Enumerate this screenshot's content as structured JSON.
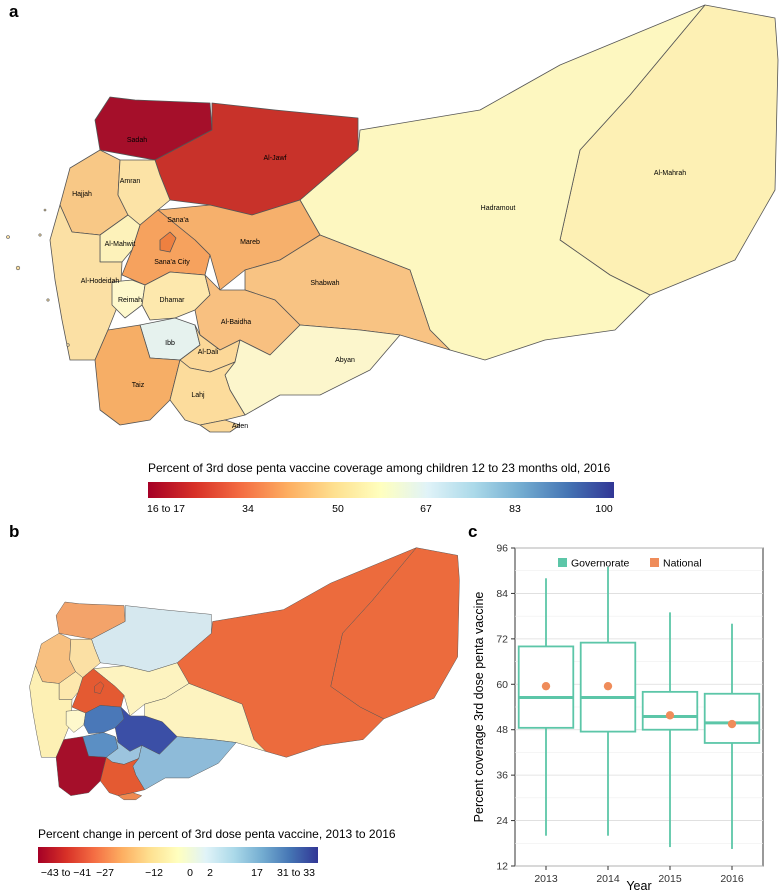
{
  "panels": {
    "a": "a",
    "b": "b",
    "c": "c"
  },
  "panel_a": {
    "regions": [
      {
        "name": "Sadah",
        "fill": "#a50f2a"
      },
      {
        "name": "Al-Jawf",
        "fill": "#c8322a"
      },
      {
        "name": "Hadramout",
        "fill": "#fdf7c0"
      },
      {
        "name": "Al-Mahrah",
        "fill": "#fdf0b4"
      },
      {
        "name": "Hajjah",
        "fill": "#f8c886"
      },
      {
        "name": "Amran",
        "fill": "#fce3a6"
      },
      {
        "name": "Sana'a",
        "fill": "#f6a25e"
      },
      {
        "name": "Al-Mahwit",
        "fill": "#fdf2ba"
      },
      {
        "name": "Sana'a City",
        "fill": "#ee8040"
      },
      {
        "name": "Mareb",
        "fill": "#f6b06c"
      },
      {
        "name": "Shabwah",
        "fill": "#f8c383"
      },
      {
        "name": "Al-Hodeidah",
        "fill": "#fbe0a4"
      },
      {
        "name": "Reimah",
        "fill": "#fef8cc"
      },
      {
        "name": "Dhamar",
        "fill": "#fde8ad"
      },
      {
        "name": "Al-Baidha",
        "fill": "#f8c080"
      },
      {
        "name": "Ibb",
        "fill": "#e6f2ee"
      },
      {
        "name": "Al-Dali",
        "fill": "#fcd898"
      },
      {
        "name": "Abyan",
        "fill": "#fcf6cc"
      },
      {
        "name": "Taiz",
        "fill": "#f6ae66"
      },
      {
        "name": "Lahj",
        "fill": "#fcdc9c"
      },
      {
        "name": "Aden",
        "fill": "#fbd898"
      }
    ],
    "legend": {
      "title": "Percent of 3rd dose penta vaccine coverage among children 12 to 23 months old, 2016",
      "ticks": [
        "16 to 17",
        "34",
        "50",
        "67",
        "83",
        "100"
      ]
    }
  },
  "panel_b": {
    "regions": [
      {
        "name": "Sadah",
        "fill": "#f3a36a"
      },
      {
        "name": "Al-Jawf",
        "fill": "#d6e8ef"
      },
      {
        "name": "Hadramout",
        "fill": "#ec6b3d"
      },
      {
        "name": "Al-Mahrah",
        "fill": "#ec6b3d"
      },
      {
        "name": "Hajjah",
        "fill": "#f8c080"
      },
      {
        "name": "Amran",
        "fill": "#fbe0a4"
      },
      {
        "name": "Sana'a",
        "fill": "#e45a32"
      },
      {
        "name": "Al-Mahwit",
        "fill": "#fde8ad"
      },
      {
        "name": "Sana'a City",
        "fill": "#e45a32"
      },
      {
        "name": "Mareb",
        "fill": "#fdf3c0"
      },
      {
        "name": "Shabwah",
        "fill": "#fdf3c0"
      },
      {
        "name": "Al-Hodeidah",
        "fill": "#fdf0b4"
      },
      {
        "name": "Reimah",
        "fill": "#fef8cc"
      },
      {
        "name": "Dhamar",
        "fill": "#4a78b8"
      },
      {
        "name": "Al-Baidha",
        "fill": "#3b4fa6"
      },
      {
        "name": "Ibb",
        "fill": "#5b8fc4"
      },
      {
        "name": "Al-Dali",
        "fill": "#9cc4de"
      },
      {
        "name": "Abyan",
        "fill": "#8ebbd9"
      },
      {
        "name": "Taiz",
        "fill": "#a50f2a"
      },
      {
        "name": "Lahj",
        "fill": "#e45a32"
      },
      {
        "name": "Aden",
        "fill": "#ef8a50"
      }
    ],
    "legend": {
      "title": "Percent change in percent of 3rd dose penta vaccine, 2013 to 2016",
      "ticks": [
        "−43 to −41",
        "−27",
        "−12",
        "0",
        "2",
        "17",
        "31 to 33"
      ]
    }
  },
  "chart_data": {
    "type": "box",
    "title": "",
    "xlabel": "Year",
    "ylabel": "Percent coverage 3rd dose penta vaccine",
    "ylim": [
      12,
      96
    ],
    "yticks": [
      12,
      24,
      36,
      48,
      60,
      72,
      84,
      96
    ],
    "categories": [
      "2013",
      "2014",
      "2015",
      "2016"
    ],
    "legend": [
      {
        "name": "Governorate",
        "label": "Governorate",
        "color": "#5cc6a8"
      },
      {
        "name": "National",
        "label": "National",
        "color": "#ef8c5a"
      }
    ],
    "series": [
      {
        "name": "Governorate",
        "type": "boxplot",
        "boxes": [
          {
            "year": "2013",
            "min": 20,
            "q1": 48.5,
            "median": 56.5,
            "q3": 70,
            "max": 88
          },
          {
            "year": "2014",
            "min": 20,
            "q1": 47.5,
            "median": 56.5,
            "q3": 71,
            "max": 91
          },
          {
            "year": "2015",
            "min": 17,
            "q1": 48,
            "median": 51.5,
            "q3": 58,
            "max": 79
          },
          {
            "year": "2016",
            "min": 16.5,
            "q1": 44.5,
            "median": 49.8,
            "q3": 57.5,
            "max": 76
          }
        ]
      },
      {
        "name": "National",
        "type": "point",
        "values": [
          59.5,
          59.5,
          51.8,
          49.5
        ]
      }
    ]
  }
}
